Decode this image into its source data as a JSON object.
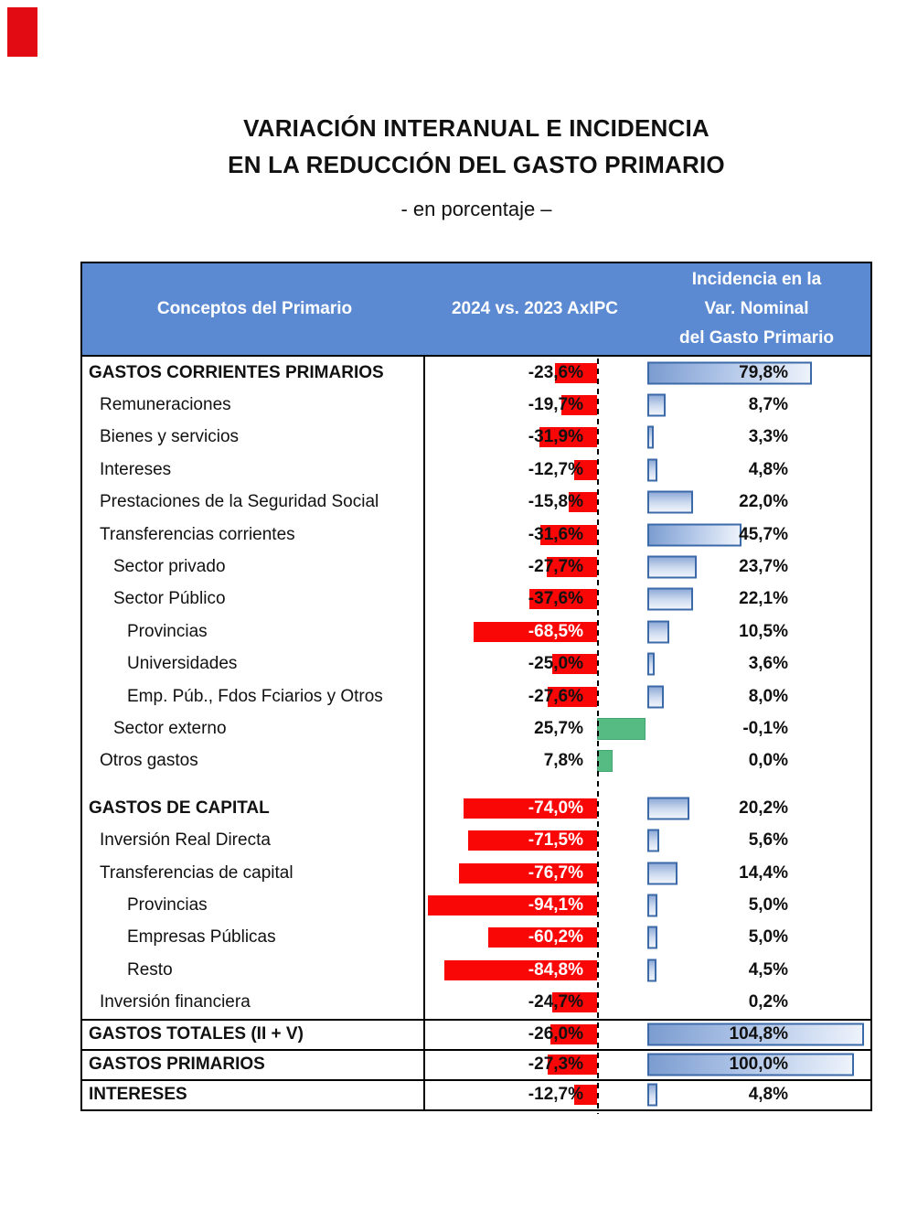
{
  "title": {
    "line1": "VARIACIÓN INTERANUAL E INCIDENCIA",
    "line2": "EN LA REDUCCIÓN DEL GASTO PRIMARIO",
    "subtitle": "- en porcentaje –"
  },
  "table_header": {
    "col1": "Conceptos del Primario",
    "col2": "2024 vs. 2023 AxIPC",
    "col3_line1": "Incidencia en la",
    "col3_line2": "Var. Nominal",
    "col3_line3": "del Gasto Primario"
  },
  "colors": {
    "header_bg": "#5b8ad3",
    "negative_bar": "#f90606",
    "positive_bar": "#56bb83",
    "incidence_bar_border": "#3c69a8",
    "incidence_bar_fill_dark": "#7b9cd0",
    "incidence_bar_fill_light": "#f0f4fb",
    "corner_mark": "#e30b13"
  },
  "chart_data": {
    "type": "bar",
    "orientation": "horizontal",
    "zero_line": "dashed",
    "grid": false,
    "columns": [
      "Conceptos del Primario",
      "2024 vs. 2023 AxIPC",
      "Incidencia en la Var. Nominal del Gasto Primario"
    ],
    "sections": [
      {
        "rows": [
          {
            "label": "GASTOS CORRIENTES PRIMARIOS",
            "indent": 0,
            "bold": true,
            "variation": -23.6,
            "variation_label": "-23,6%",
            "incidence": 79.8,
            "incidence_label": "79,8%"
          },
          {
            "label": "Remuneraciones",
            "indent": 1,
            "bold": false,
            "variation": -19.7,
            "variation_label": "-19,7%",
            "incidence": 8.7,
            "incidence_label": "8,7%"
          },
          {
            "label": "Bienes y servicios",
            "indent": 1,
            "bold": false,
            "variation": -31.9,
            "variation_label": "-31,9%",
            "incidence": 3.3,
            "incidence_label": "3,3%"
          },
          {
            "label": "Intereses",
            "indent": 1,
            "bold": false,
            "variation": -12.7,
            "variation_label": "-12,7%",
            "incidence": 4.8,
            "incidence_label": "4,8%"
          },
          {
            "label": "Prestaciones de la Seguridad Social",
            "indent": 1,
            "bold": false,
            "variation": -15.8,
            "variation_label": "-15,8%",
            "incidence": 22.0,
            "incidence_label": "22,0%"
          },
          {
            "label": "Transferencias corrientes",
            "indent": 1,
            "bold": false,
            "variation": -31.6,
            "variation_label": "-31,6%",
            "incidence": 45.7,
            "incidence_label": "45,7%"
          },
          {
            "label": "Sector privado",
            "indent": 2,
            "bold": false,
            "variation": -27.7,
            "variation_label": "-27,7%",
            "incidence": 23.7,
            "incidence_label": "23,7%"
          },
          {
            "label": "Sector Público",
            "indent": 2,
            "bold": false,
            "variation": -37.6,
            "variation_label": "-37,6%",
            "incidence": 22.1,
            "incidence_label": "22,1%"
          },
          {
            "label": "Provincias",
            "indent": 3,
            "bold": false,
            "variation": -68.5,
            "variation_label": "-68,5%",
            "incidence": 10.5,
            "incidence_label": "10,5%"
          },
          {
            "label": "Universidades",
            "indent": 3,
            "bold": false,
            "variation": -25.0,
            "variation_label": "-25,0%",
            "incidence": 3.6,
            "incidence_label": "3,6%"
          },
          {
            "label": "Emp. Púb., Fdos Fciarios y Otros",
            "indent": 3,
            "bold": false,
            "variation": -27.6,
            "variation_label": "-27,6%",
            "incidence": 8.0,
            "incidence_label": "8,0%"
          },
          {
            "label": "Sector externo",
            "indent": 2,
            "bold": false,
            "variation": 25.7,
            "variation_label": "25,7%",
            "incidence": -0.1,
            "incidence_label": "-0,1%"
          },
          {
            "label": "Otros gastos",
            "indent": 1,
            "bold": false,
            "variation": 7.8,
            "variation_label": "7,8%",
            "incidence": 0.0,
            "incidence_label": "0,0%"
          }
        ]
      },
      {
        "rows": [
          {
            "label": "GASTOS DE CAPITAL",
            "indent": 0,
            "bold": true,
            "variation": -74.0,
            "variation_label": "-74,0%",
            "incidence": 20.2,
            "incidence_label": "20,2%"
          },
          {
            "label": "Inversión Real Directa",
            "indent": 1,
            "bold": false,
            "variation": -71.5,
            "variation_label": "-71,5%",
            "incidence": 5.6,
            "incidence_label": "5,6%"
          },
          {
            "label": "Transferencias de capital",
            "indent": 1,
            "bold": false,
            "variation": -76.7,
            "variation_label": "-76,7%",
            "incidence": 14.4,
            "incidence_label": "14,4%"
          },
          {
            "label": "Provincias",
            "indent": 3,
            "bold": false,
            "variation": -94.1,
            "variation_label": "-94,1%",
            "incidence": 5.0,
            "incidence_label": "5,0%"
          },
          {
            "label": "Empresas Públicas",
            "indent": 3,
            "bold": false,
            "variation": -60.2,
            "variation_label": "-60,2%",
            "incidence": 5.0,
            "incidence_label": "5,0%"
          },
          {
            "label": "Resto",
            "indent": 3,
            "bold": false,
            "variation": -84.8,
            "variation_label": "-84,8%",
            "incidence": 4.5,
            "incidence_label": "4,5%"
          },
          {
            "label": "Inversión financiera",
            "indent": 1,
            "bold": false,
            "variation": -24.7,
            "variation_label": "-24,7%",
            "incidence": 0.2,
            "incidence_label": "0,2%"
          }
        ]
      }
    ],
    "totals": [
      {
        "label": "GASTOS TOTALES (II + V)",
        "indent": 0,
        "bold": true,
        "variation": -26.0,
        "variation_label": "-26,0%",
        "incidence": 104.8,
        "incidence_label": "104,8%"
      },
      {
        "label": "GASTOS PRIMARIOS",
        "indent": 0,
        "bold": true,
        "variation": -27.3,
        "variation_label": "-27,3%",
        "incidence": 100.0,
        "incidence_label": "100,0%"
      },
      {
        "label": "INTERESES",
        "indent": 0,
        "bold": true,
        "variation": -12.7,
        "variation_label": "-12,7%",
        "incidence": 4.8,
        "incidence_label": "4,8%"
      }
    ]
  }
}
